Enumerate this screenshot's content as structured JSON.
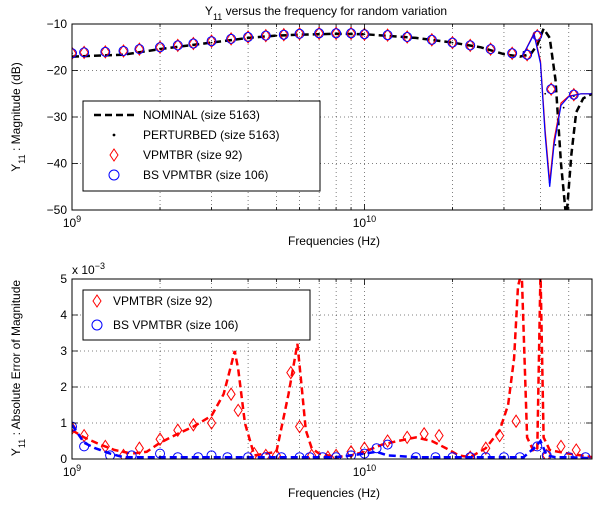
{
  "chart_data": [
    {
      "type": "line",
      "title": "Y",
      "title_sub": "11",
      "title_rest": " versus the frequency for random variation",
      "xlabel": "Frequencies (Hz)",
      "ylabel": "Y",
      "ylabel_sub": "11",
      "ylabel_rest": " : Magnitude (dB)",
      "x_scale": "log",
      "xlim": [
        1000000000.0,
        60000000000.0
      ],
      "ylim": [
        -50,
        -10
      ],
      "yticks": [
        "−50",
        "−40",
        "−30",
        "−20",
        "−10"
      ],
      "xticks": [
        {
          "base": "10",
          "exp": "9"
        },
        {
          "base": "10",
          "exp": "10"
        }
      ],
      "grid": true,
      "legend": "center-left",
      "legend_labels": [
        "NOMINAL (size 5163)",
        "PERTURBED (size 5163)",
        "VPMTBR (size 92)",
        "BS VPMTBR (size 106)"
      ],
      "series": [
        {
          "name": "NOMINAL (size 5163)",
          "style": "dashed",
          "color": "#000000",
          "x": [
            1000000000.0,
            1500000000.0,
            2000000000.0,
            3000000000.0,
            4000000000.0,
            5000000000.0,
            6000000000.0,
            8000000000.0,
            10000000000.0,
            15000000000.0,
            20000000000.0,
            25000000000.0,
            30000000000.0,
            34000000000.0,
            37000000000.0,
            39000000000.0,
            41000000000.0,
            43000000000.0,
            45000000000.0,
            47000000000.0,
            49000000000.0,
            51000000000.0,
            53000000000.0,
            56000000000.0,
            60000000000.0
          ],
          "y": [
            -17,
            -16.6,
            -15.4,
            -14,
            -13,
            -12.5,
            -12.3,
            -12.1,
            -12.2,
            -13,
            -14,
            -15,
            -16.5,
            -17,
            -16.5,
            -14.5,
            -11,
            -13,
            -22,
            -40,
            -52,
            -38,
            -29,
            -26,
            -25
          ]
        },
        {
          "name": "PERTURBED (size 5163)",
          "style": "dotted",
          "color": "#000000",
          "x": [
            1000000000.0,
            2000000000.0,
            3000000000.0,
            5000000000.0,
            8000000000.0,
            10000000000.0,
            15000000000.0,
            20000000000.0,
            30000000000.0,
            35000000000.0,
            38000000000.0,
            40000000000.0,
            41500000000.0,
            43000000000.0,
            45000000000.0,
            48000000000.0,
            52000000000.0,
            60000000000.0
          ],
          "y": [
            -16.3,
            -15.3,
            -14,
            -12.5,
            -12.1,
            -12.2,
            -13,
            -14,
            -16.5,
            -16,
            -12,
            -15,
            -25,
            -44,
            -36,
            -28,
            -25.5,
            -25
          ]
        },
        {
          "name": "VPMTBR (size 92)",
          "style": "markers-diamond",
          "color": "#ff0000",
          "x": [
            1000000000.0,
            1100000000.0,
            1300000000.0,
            1500000000.0,
            1700000000.0,
            2000000000.0,
            2300000000.0,
            2600000000.0,
            3000000000.0,
            3500000000.0,
            4000000000.0,
            4600000000.0,
            5300000000.0,
            6000000000.0,
            7000000000.0,
            8000000000.0,
            9000000000.0,
            10000000000.0,
            12000000000.0,
            14000000000.0,
            17000000000.0,
            20000000000.0,
            23000000000.0,
            27000000000.0,
            32000000000.0,
            36000000000.0,
            39000000000.0,
            43500000000.0,
            52000000000.0
          ],
          "y": [
            -16.3,
            -16.1,
            -16,
            -15.8,
            -15.4,
            -15,
            -14.6,
            -14.2,
            -13.7,
            -13.2,
            -12.8,
            -12.5,
            -12.3,
            -12.1,
            -12,
            -12,
            -12,
            -12.2,
            -12.4,
            -12.8,
            -13.4,
            -14,
            -14.6,
            -15.4,
            -16.3,
            -16.6,
            -12.5,
            -24,
            -25.2
          ]
        },
        {
          "name": "BS VPMTBR (size 106)",
          "style": "markers-circle",
          "color": "#0000ff",
          "x": [
            1000000000.0,
            1100000000.0,
            1300000000.0,
            1500000000.0,
            1700000000.0,
            2000000000.0,
            2300000000.0,
            2600000000.0,
            3000000000.0,
            3500000000.0,
            4000000000.0,
            4600000000.0,
            5300000000.0,
            6000000000.0,
            7000000000.0,
            8000000000.0,
            9000000000.0,
            10000000000.0,
            12000000000.0,
            14000000000.0,
            17000000000.0,
            20000000000.0,
            23000000000.0,
            27000000000.0,
            32000000000.0,
            36000000000.0,
            39000000000.0,
            43500000000.0,
            52000000000.0
          ],
          "y": [
            -16.3,
            -16.1,
            -16,
            -15.8,
            -15.4,
            -15,
            -14.6,
            -14.2,
            -13.7,
            -13.2,
            -12.8,
            -12.5,
            -12.3,
            -12.1,
            -12,
            -12,
            -12,
            -12.2,
            -12.4,
            -12.8,
            -13.4,
            -14,
            -14.6,
            -15.4,
            -16.3,
            -16.6,
            -12.5,
            -24,
            -25.2
          ]
        },
        {
          "name": "VPMTBR (size 92)",
          "style": "solid-red",
          "color": "#ff0000",
          "x": [
            35000000000.0,
            38000000000.0,
            40000000000.0,
            41500000000.0,
            43000000000.0,
            44500000000.0,
            47000000000.0,
            50000000000.0,
            55000000000.0,
            60000000000.0
          ],
          "y": [
            -16.5,
            -12,
            -18,
            -33,
            -44,
            -35,
            -27,
            -25.5,
            -25,
            -25
          ]
        },
        {
          "name": "BS VPMTBR (size 106)",
          "style": "solid-blue",
          "color": "#0000ff",
          "x": [
            35000000000.0,
            38000000000.0,
            40000000000.0,
            41500000000.0,
            43000000000.0,
            44500000000.0,
            47000000000.0,
            50000000000.0,
            55000000000.0,
            60000000000.0
          ],
          "y": [
            -16.5,
            -12.2,
            -18.5,
            -34,
            -45,
            -36,
            -27.5,
            -25.6,
            -25,
            -25
          ]
        }
      ]
    },
    {
      "type": "line",
      "xlabel": "Frequencies (Hz)",
      "ylabel": "Y",
      "ylabel_sub": "11",
      "ylabel_rest": " : Absolute Error of Magnitude",
      "x_scale": "log",
      "xlim": [
        1000000000.0,
        60000000000.0
      ],
      "ylim": [
        0,
        5
      ],
      "yticks": [
        "0",
        "1",
        "2",
        "3",
        "4",
        "5"
      ],
      "xticks": [
        {
          "base": "10",
          "exp": "9"
        },
        {
          "base": "10",
          "exp": "10"
        }
      ],
      "y_multiplier_base": "x 10",
      "y_multiplier_exp": "−3",
      "grid": true,
      "legend": "top-left",
      "legend_labels": [
        "VPMTBR (size 92)",
        "BS VPMTBR (size 106)"
      ],
      "series": [
        {
          "name": "VPMTBR (size 92)",
          "style": "dashed",
          "color": "#ff0000",
          "x": [
            1000000000.0,
            1100000000.0,
            1250000000.0,
            1400000000.0,
            1600000000.0,
            1800000000.0,
            2000000000.0,
            2300000000.0,
            2600000000.0,
            3000000000.0,
            3300000000.0,
            3500000000.0,
            3600000000.0,
            3700000000.0,
            3900000000.0,
            4200000000.0,
            4600000000.0,
            5000000000.0,
            5500000000.0,
            5900000000.0,
            6100000000.0,
            6300000000.0,
            6600000000.0,
            7000000000.0,
            7500000000.0,
            8000000000.0,
            9000000000.0,
            10000000000.0,
            11500000000.0,
            13000000000.0,
            15000000000.0,
            17000000000.0,
            19000000000.0,
            21000000000.0,
            23000000000.0,
            26000000000.0,
            29000000000.0,
            31000000000.0,
            32500000000.0,
            33500000000.0,
            34500000000.0,
            36000000000.0,
            38000000000.0,
            39000000000.0,
            40000000000.0,
            41000000000.0,
            43000000000.0,
            46000000000.0,
            50000000000.0,
            55000000000.0,
            60000000000.0
          ],
          "y": [
            0.8,
            0.6,
            0.4,
            0.25,
            0.15,
            0.2,
            0.45,
            0.7,
            0.9,
            1.2,
            1.8,
            2.6,
            3.0,
            2.5,
            1.0,
            0.1,
            0.15,
            0.2,
            1.8,
            3.2,
            2.0,
            0.8,
            0.3,
            0.15,
            0.1,
            0.05,
            0.1,
            0.2,
            0.4,
            0.5,
            0.6,
            0.5,
            0.3,
            0.1,
            0.05,
            0.3,
            0.8,
            1.5,
            2.8,
            4.8,
            5.2,
            0.6,
            0.2,
            0.3,
            5.2,
            0.6,
            0.25,
            0.2,
            0.15,
            0.1,
            0.05
          ]
        },
        {
          "name": "VPMTBR (size 92)",
          "style": "markers-diamond",
          "color": "#ff0000",
          "x": [
            1000000000.0,
            1100000000.0,
            1300000000.0,
            1500000000.0,
            1700000000.0,
            2000000000.0,
            2300000000.0,
            2600000000.0,
            3000000000.0,
            3500000000.0,
            3700000000.0,
            4200000000.0,
            4600000000.0,
            5000000000.0,
            5600000000.0,
            6000000000.0,
            6600000000.0,
            7500000000.0,
            8000000000.0,
            9000000000.0,
            10000000000.0,
            12000000000.0,
            14000000000.0,
            16000000000.0,
            18000000000.0,
            23000000000.0,
            26000000000.0,
            29000000000.0,
            33000000000.0,
            42000000000.0,
            47000000000.0,
            53000000000.0
          ],
          "y": [
            0.85,
            0.65,
            0.35,
            0.1,
            0.3,
            0.55,
            0.8,
            0.95,
            1.0,
            1.8,
            1.35,
            0.15,
            0.1,
            0.1,
            2.4,
            0.9,
            0.1,
            0.05,
            0.1,
            0.2,
            0.3,
            0.5,
            0.6,
            0.7,
            0.65,
            0.05,
            0.3,
            0.65,
            1.05,
            0.1,
            0.35,
            0.25
          ]
        },
        {
          "name": "BS VPMTBR (size 106)",
          "style": "dashed",
          "color": "#0000ff",
          "x": [
            1000000000.0,
            1100000000.0,
            1200000000.0,
            1350000000.0,
            1500000000.0,
            2000000000.0,
            3000000000.0,
            4000000000.0,
            5000000000.0,
            6000000000.0,
            7000000000.0,
            8000000000.0,
            9000000000.0,
            10000000000.0,
            11000000000.0,
            12000000000.0,
            15000000000.0,
            20000000000.0,
            30000000000.0,
            35000000000.0,
            38000000000.0,
            40000000000.0,
            42000000000.0,
            45000000000.0,
            50000000000.0,
            60000000000.0
          ],
          "y": [
            0.95,
            0.45,
            0.3,
            0.15,
            0.05,
            0.05,
            0.05,
            0.05,
            0.05,
            0.05,
            0.05,
            0.05,
            0.1,
            0.15,
            0.2,
            0.1,
            0.05,
            0.05,
            0.05,
            0.05,
            0.3,
            0.5,
            0.1,
            0.05,
            0.05,
            0.02
          ]
        },
        {
          "name": "BS VPMTBR (size 106)",
          "style": "markers-circle",
          "color": "#0000ff",
          "x": [
            1000000000.0,
            1100000000.0,
            1350000000.0,
            1600000000.0,
            2000000000.0,
            2300000000.0,
            2700000000.0,
            3000000000.0,
            3400000000.0,
            4000000000.0,
            4600000000.0,
            5200000000.0,
            6000000000.0,
            6500000000.0,
            7200000000.0,
            8000000000.0,
            9000000000.0,
            10000000000.0,
            11000000000.0,
            12000000000.0,
            15000000000.0,
            17500000000.0,
            20000000000.0,
            23000000000.0,
            26000000000.0,
            30000000000.0,
            34000000000.0,
            39000000000.0,
            42000000000.0,
            50000000000.0,
            57000000000.0
          ],
          "y": [
            0.9,
            0.35,
            0.1,
            0.1,
            0.15,
            0.05,
            0.05,
            0.1,
            0.05,
            0.05,
            0.05,
            0.05,
            0.05,
            0.05,
            0.05,
            0.05,
            0.1,
            0.15,
            0.3,
            0.4,
            0.05,
            0.05,
            0.05,
            0.05,
            0.05,
            0.05,
            0.05,
            0.35,
            0.1,
            0.05,
            0.05
          ]
        }
      ]
    }
  ]
}
